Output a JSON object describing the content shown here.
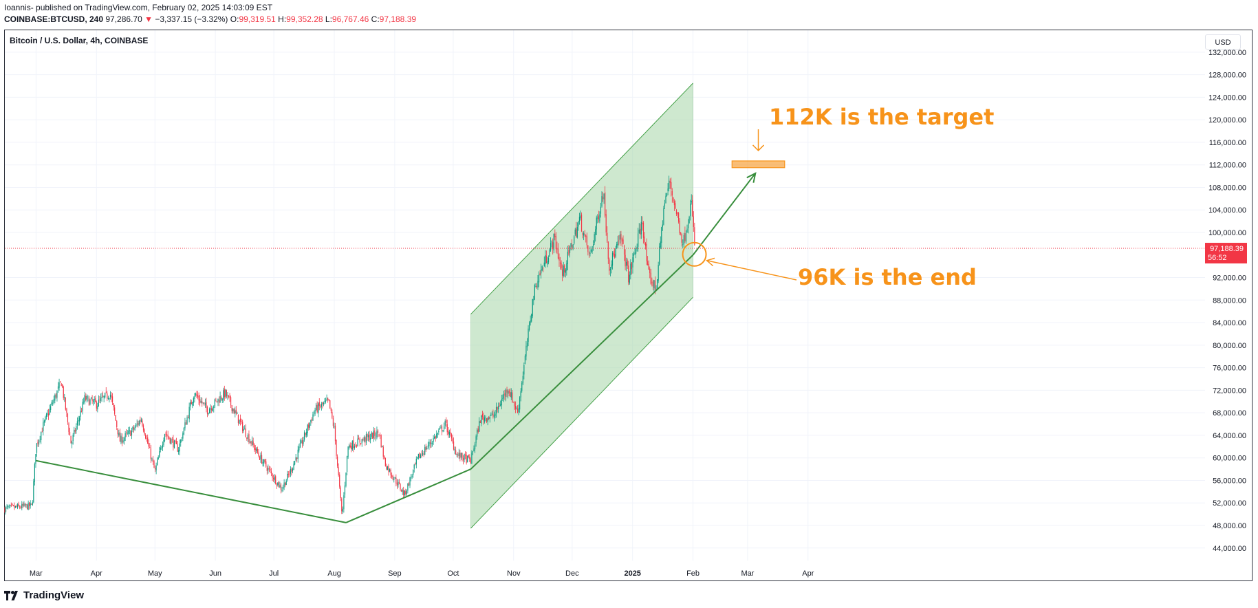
{
  "header": {
    "line1": "Ioannis- published on TradingView.com, February 02, 2025 14:03:09 EST",
    "symbol": "COINBASE:BTCUSD, 240",
    "last": "97,286.70",
    "change_arrow": "▼",
    "change": "−3,337.15 (−3.32%)",
    "o_label": "O:",
    "o_value": "99,319.51",
    "h_label": "H:",
    "h_value": "99,352.28",
    "l_label": "L:",
    "l_value": "96,767.46",
    "c_label": "C:",
    "c_value": "97,188.39"
  },
  "legend": "Bitcoin / U.S. Dollar, 4h, COINBASE",
  "currency_button": "USD",
  "price_tag": {
    "price": "97,188.39",
    "countdown": "56:52",
    "color": "#f23645"
  },
  "annotations": {
    "target_text": "112K is the target",
    "end_text": "96K is the end",
    "color": "#f7931a"
  },
  "logo": {
    "text": "TradingView",
    "icon": "tradingview-logo-icon"
  },
  "colors": {
    "up": "#089981",
    "down": "#f23645",
    "channel_fill": "#a5d6a7",
    "channel_line": "#43a047",
    "trend_line": "#388e3c"
  },
  "chart_data": {
    "type": "candlestick",
    "title": "Bitcoin / U.S. Dollar, 4h, COINBASE",
    "x_ticks": [
      "Mar",
      "Apr",
      "May",
      "Jun",
      "Jul",
      "Aug",
      "Sep",
      "Oct",
      "Nov",
      "Dec",
      "2025",
      "Feb",
      "Mar",
      "Apr"
    ],
    "y_ticks": [
      "132,000.00",
      "128,000.00",
      "124,000.00",
      "120,000.00",
      "116,000.00",
      "112,000.00",
      "108,000.00",
      "104,000.00",
      "100,000.00",
      "92,000.00",
      "88,000.00",
      "84,000.00",
      "80,000.00",
      "76,000.00",
      "72,000.00",
      "68,000.00",
      "64,000.00",
      "60,000.00",
      "56,000.00",
      "52,000.00",
      "48,000.00",
      "44,000.00"
    ],
    "ylim": [
      41000,
      133000
    ],
    "price_path": [
      [
        "2024-02-14",
        51000
      ],
      [
        "2024-02-28",
        51500
      ],
      [
        "2024-03-01",
        62000
      ],
      [
        "2024-03-05",
        66000
      ],
      [
        "2024-03-08",
        68500
      ],
      [
        "2024-03-14",
        73500
      ],
      [
        "2024-03-19",
        62500
      ],
      [
        "2024-03-26",
        70500
      ],
      [
        "2024-04-01",
        69500
      ],
      [
        "2024-04-08",
        71500
      ],
      [
        "2024-04-13",
        63000
      ],
      [
        "2024-04-20",
        65000
      ],
      [
        "2024-04-24",
        67000
      ],
      [
        "2024-05-01",
        57500
      ],
      [
        "2024-05-06",
        64500
      ],
      [
        "2024-05-13",
        61500
      ],
      [
        "2024-05-21",
        71500
      ],
      [
        "2024-05-28",
        68500
      ],
      [
        "2024-06-06",
        71500
      ],
      [
        "2024-06-14",
        66000
      ],
      [
        "2024-06-24",
        60000
      ],
      [
        "2024-07-05",
        54500
      ],
      [
        "2024-07-10",
        58000
      ],
      [
        "2024-07-22",
        68500
      ],
      [
        "2024-07-29",
        70000
      ],
      [
        "2024-08-01",
        65000
      ],
      [
        "2024-08-05",
        49500
      ],
      [
        "2024-08-08",
        62000
      ],
      [
        "2024-08-24",
        64500
      ],
      [
        "2024-08-27",
        59000
      ],
      [
        "2024-09-06",
        53500
      ],
      [
        "2024-09-13",
        60000
      ],
      [
        "2024-09-27",
        66000
      ],
      [
        "2024-10-03",
        60500
      ],
      [
        "2024-10-10",
        59500
      ],
      [
        "2024-10-15",
        67000
      ],
      [
        "2024-10-22",
        67500
      ],
      [
        "2024-10-29",
        72500
      ],
      [
        "2024-11-03",
        68000
      ],
      [
        "2024-11-06",
        75500
      ],
      [
        "2024-11-11",
        88500
      ],
      [
        "2024-11-13",
        91500
      ],
      [
        "2024-11-22",
        99000
      ],
      [
        "2024-11-26",
        92500
      ],
      [
        "2024-12-05",
        102500
      ],
      [
        "2024-12-10",
        95500
      ],
      [
        "2024-12-17",
        107500
      ],
      [
        "2024-12-20",
        94000
      ],
      [
        "2024-12-26",
        99000
      ],
      [
        "2024-12-30",
        92000
      ],
      [
        "2025-01-06",
        102000
      ],
      [
        "2025-01-09",
        92500
      ],
      [
        "2025-01-13",
        90000
      ],
      [
        "2025-01-17",
        104500
      ],
      [
        "2025-01-20",
        109000
      ],
      [
        "2025-01-27",
        98000
      ],
      [
        "2025-01-31",
        105500
      ],
      [
        "2025-02-02",
        97188.39
      ]
    ],
    "last_price": 97188.39,
    "channel": {
      "from": "2024-10-10",
      "to": "2025-02-01",
      "upper": [
        85500,
        126500
      ],
      "lower": [
        47500,
        88500
      ]
    },
    "trendline": [
      [
        "2024-03-01",
        59500
      ],
      [
        "2024-08-07",
        48500
      ],
      [
        "2024-10-10",
        58000
      ],
      [
        "2025-02-01",
        96000
      ]
    ],
    "arrow_to": [
      "2025-03-05",
      110500
    ],
    "target_zone": {
      "from": "2025-02-21",
      "to": "2025-03-20",
      "low": 111500,
      "high": 112700
    },
    "circle_at": [
      "2025-02-01",
      96000
    ]
  }
}
